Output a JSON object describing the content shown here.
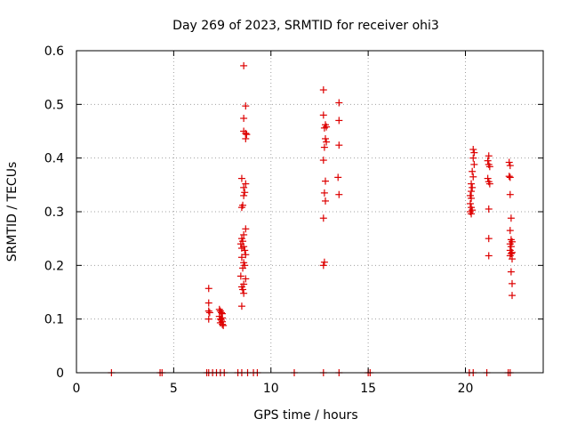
{
  "chart_data": {
    "type": "scatter",
    "title": "Day 269 of 2023, SRMTID for receiver ohi3",
    "xlabel": "GPS time / hours",
    "ylabel": "SRMTID / TECUs",
    "xlim": [
      0,
      24
    ],
    "ylim": [
      0,
      0.6
    ],
    "xticks": [
      0,
      5,
      10,
      15,
      20
    ],
    "yticks": [
      0,
      0.1,
      0.2,
      0.3,
      0.4,
      0.5,
      0.6
    ],
    "xtick_labels": [
      "0",
      "5",
      "10",
      "15",
      "20"
    ],
    "ytick_labels": [
      "0",
      "0.1",
      "0.2",
      "0.3",
      "0.4",
      "0.5",
      "0.6"
    ],
    "grid": true,
    "marker": "+",
    "color": "#dd0000",
    "series": [
      {
        "name": "SRMTID",
        "points": [
          [
            1.8,
            0
          ],
          [
            4.3,
            0
          ],
          [
            4.4,
            0
          ],
          [
            6.7,
            0
          ],
          [
            6.8,
            0
          ],
          [
            7.0,
            0
          ],
          [
            7.2,
            0
          ],
          [
            7.4,
            0
          ],
          [
            7.6,
            0
          ],
          [
            8.3,
            0
          ],
          [
            8.5,
            0
          ],
          [
            8.8,
            0
          ],
          [
            9.1,
            0
          ],
          [
            9.3,
            0
          ],
          [
            11.2,
            0
          ],
          [
            12.7,
            0
          ],
          [
            13.5,
            0
          ],
          [
            15.0,
            0
          ],
          [
            15.1,
            0
          ],
          [
            20.2,
            0
          ],
          [
            20.4,
            0
          ],
          [
            21.1,
            0
          ],
          [
            22.2,
            0
          ],
          [
            22.3,
            0
          ],
          [
            6.8,
            0.157
          ],
          [
            6.8,
            0.13
          ],
          [
            6.8,
            0.115
          ],
          [
            6.85,
            0.112
          ],
          [
            6.8,
            0.1
          ],
          [
            7.35,
            0.118
          ],
          [
            7.4,
            0.115
          ],
          [
            7.45,
            0.112
          ],
          [
            7.5,
            0.11
          ],
          [
            7.35,
            0.105
          ],
          [
            7.5,
            0.102
          ],
          [
            7.4,
            0.1
          ],
          [
            7.45,
            0.098
          ],
          [
            7.5,
            0.095
          ],
          [
            7.4,
            0.093
          ],
          [
            7.5,
            0.09
          ],
          [
            7.55,
            0.088
          ],
          [
            8.6,
            0.572
          ],
          [
            8.7,
            0.497
          ],
          [
            8.6,
            0.474
          ],
          [
            8.6,
            0.45
          ],
          [
            8.7,
            0.446
          ],
          [
            8.75,
            0.444
          ],
          [
            8.7,
            0.436
          ],
          [
            8.5,
            0.362
          ],
          [
            8.7,
            0.352
          ],
          [
            8.6,
            0.345
          ],
          [
            8.65,
            0.336
          ],
          [
            8.6,
            0.33
          ],
          [
            8.55,
            0.312
          ],
          [
            8.5,
            0.308
          ],
          [
            8.7,
            0.268
          ],
          [
            8.6,
            0.257
          ],
          [
            8.5,
            0.25
          ],
          [
            8.55,
            0.245
          ],
          [
            8.45,
            0.24
          ],
          [
            8.6,
            0.235
          ],
          [
            8.5,
            0.232
          ],
          [
            8.65,
            0.228
          ],
          [
            8.7,
            0.22
          ],
          [
            8.5,
            0.215
          ],
          [
            8.6,
            0.205
          ],
          [
            8.65,
            0.2
          ],
          [
            8.55,
            0.195
          ],
          [
            8.45,
            0.18
          ],
          [
            8.7,
            0.175
          ],
          [
            8.6,
            0.165
          ],
          [
            8.5,
            0.16
          ],
          [
            8.55,
            0.155
          ],
          [
            8.6,
            0.148
          ],
          [
            8.5,
            0.124
          ],
          [
            12.7,
            0.527
          ],
          [
            12.7,
            0.48
          ],
          [
            12.8,
            0.462
          ],
          [
            12.85,
            0.458
          ],
          [
            12.75,
            0.456
          ],
          [
            12.8,
            0.436
          ],
          [
            12.85,
            0.43
          ],
          [
            12.75,
            0.42
          ],
          [
            12.7,
            0.396
          ],
          [
            12.8,
            0.357
          ],
          [
            12.75,
            0.335
          ],
          [
            12.8,
            0.32
          ],
          [
            12.7,
            0.288
          ],
          [
            12.75,
            0.206
          ],
          [
            12.7,
            0.2
          ],
          [
            13.5,
            0.503
          ],
          [
            13.5,
            0.47
          ],
          [
            13.5,
            0.424
          ],
          [
            13.45,
            0.364
          ],
          [
            13.5,
            0.332
          ],
          [
            20.4,
            0.416
          ],
          [
            20.45,
            0.41
          ],
          [
            20.4,
            0.4
          ],
          [
            20.45,
            0.388
          ],
          [
            20.35,
            0.375
          ],
          [
            20.4,
            0.365
          ],
          [
            20.3,
            0.352
          ],
          [
            20.35,
            0.345
          ],
          [
            20.3,
            0.338
          ],
          [
            20.25,
            0.33
          ],
          [
            20.3,
            0.325
          ],
          [
            20.25,
            0.315
          ],
          [
            20.3,
            0.308
          ],
          [
            20.35,
            0.303
          ],
          [
            20.25,
            0.3
          ],
          [
            20.3,
            0.296
          ],
          [
            21.2,
            0.404
          ],
          [
            21.15,
            0.395
          ],
          [
            21.2,
            0.388
          ],
          [
            21.25,
            0.384
          ],
          [
            21.15,
            0.362
          ],
          [
            21.2,
            0.356
          ],
          [
            21.25,
            0.352
          ],
          [
            21.2,
            0.305
          ],
          [
            21.2,
            0.25
          ],
          [
            21.2,
            0.218
          ],
          [
            22.25,
            0.392
          ],
          [
            22.3,
            0.386
          ],
          [
            22.25,
            0.366
          ],
          [
            22.3,
            0.364
          ],
          [
            22.3,
            0.332
          ],
          [
            22.35,
            0.288
          ],
          [
            22.3,
            0.265
          ],
          [
            22.35,
            0.248
          ],
          [
            22.4,
            0.244
          ],
          [
            22.3,
            0.24
          ],
          [
            22.35,
            0.235
          ],
          [
            22.3,
            0.228
          ],
          [
            22.4,
            0.224
          ],
          [
            22.35,
            0.222
          ],
          [
            22.3,
            0.218
          ],
          [
            22.4,
            0.212
          ],
          [
            22.35,
            0.188
          ],
          [
            22.4,
            0.166
          ],
          [
            22.4,
            0.144
          ]
        ]
      }
    ]
  }
}
